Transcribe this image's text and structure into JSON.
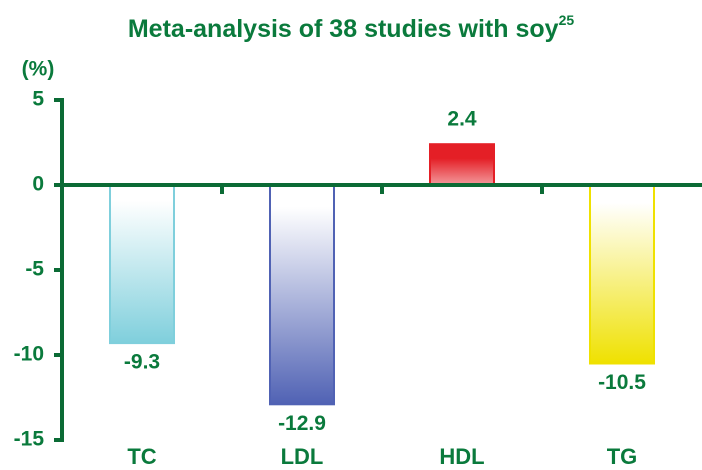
{
  "chart_data": {
    "type": "bar",
    "title": "Meta-analysis of 38 studies with soy",
    "title_superscript": "25",
    "y_label": "(%)",
    "categories": [
      "TC",
      "LDL",
      "HDL",
      "TG"
    ],
    "values": [
      -9.3,
      -12.9,
      2.4,
      -10.5
    ],
    "colors": [
      "#7fcfdc",
      "#5062b4",
      "#e41f26",
      "#efe100"
    ],
    "ylim": [
      -15,
      5
    ],
    "yticks": [
      5,
      0,
      -5,
      -10,
      -15
    ],
    "grid": false
  }
}
